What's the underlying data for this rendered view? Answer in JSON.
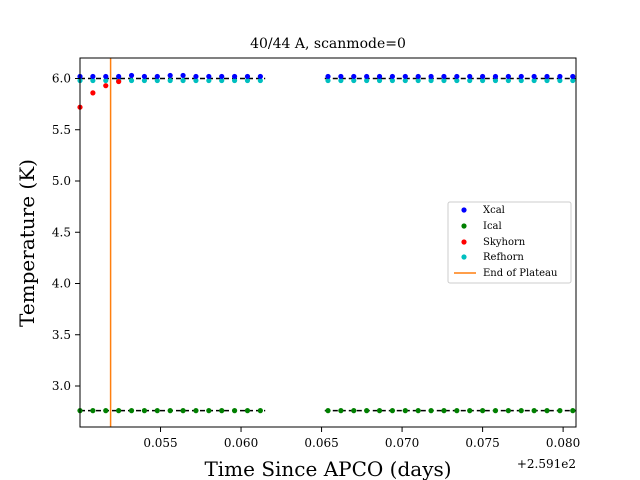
{
  "chart_data": {
    "type": "scatter",
    "title": "40/44 A, scanmode=0",
    "xlabel": "Time Since APCO (days)",
    "ylabel": "Temperature (K)",
    "x_offset_label": "+2.591e2",
    "xlim": [
      0.05,
      0.0808
    ],
    "ylim": [
      2.6,
      6.2
    ],
    "xticks": [
      0.055,
      0.06,
      0.065,
      0.07,
      0.075,
      0.08
    ],
    "xtick_labels": [
      "0.055",
      "0.060",
      "0.065",
      "0.070",
      "0.075",
      "0.080"
    ],
    "yticks": [
      3.0,
      3.5,
      4.0,
      4.5,
      5.0,
      5.5,
      6.0
    ],
    "ytick_labels": [
      "3.0",
      "3.5",
      "4.0",
      "4.5",
      "5.0",
      "5.5",
      "6.0"
    ],
    "grid": false,
    "legend_position": "center-right",
    "series": [
      {
        "name": "Xcal",
        "color": "#0000ff",
        "x": [
          0.05,
          0.0508,
          0.0516,
          0.0524,
          0.0532,
          0.054,
          0.0548,
          0.0556,
          0.0564,
          0.0572,
          0.058,
          0.0588,
          0.0596,
          0.0604,
          0.0612,
          0.0654,
          0.0662,
          0.067,
          0.0678,
          0.0686,
          0.0694,
          0.0702,
          0.071,
          0.0718,
          0.0726,
          0.0734,
          0.0742,
          0.075,
          0.0758,
          0.0766,
          0.0774,
          0.0782,
          0.079,
          0.0798,
          0.0806
        ],
        "y": [
          6.02,
          6.02,
          6.02,
          6.02,
          6.03,
          6.02,
          6.02,
          6.03,
          6.03,
          6.02,
          6.02,
          6.02,
          6.02,
          6.02,
          6.02,
          6.02,
          6.02,
          6.02,
          6.02,
          6.02,
          6.02,
          6.02,
          6.02,
          6.02,
          6.02,
          6.02,
          6.02,
          6.02,
          6.02,
          6.02,
          6.02,
          6.02,
          6.02,
          6.02,
          6.02
        ]
      },
      {
        "name": "Ical",
        "color": "#008000",
        "x": [
          0.05,
          0.0508,
          0.0516,
          0.0524,
          0.0532,
          0.054,
          0.0548,
          0.0556,
          0.0564,
          0.0572,
          0.058,
          0.0588,
          0.0596,
          0.0604,
          0.0612,
          0.0654,
          0.0662,
          0.067,
          0.0678,
          0.0686,
          0.0694,
          0.0702,
          0.071,
          0.0718,
          0.0726,
          0.0734,
          0.0742,
          0.075,
          0.0758,
          0.0766,
          0.0774,
          0.0782,
          0.079,
          0.0798,
          0.0806
        ],
        "y": [
          2.76,
          2.76,
          2.76,
          2.76,
          2.76,
          2.76,
          2.76,
          2.76,
          2.76,
          2.76,
          2.76,
          2.76,
          2.76,
          2.76,
          2.76,
          2.76,
          2.76,
          2.76,
          2.76,
          2.76,
          2.76,
          2.76,
          2.76,
          2.76,
          2.76,
          2.76,
          2.76,
          2.76,
          2.76,
          2.76,
          2.76,
          2.76,
          2.76,
          2.76,
          2.76
        ]
      },
      {
        "name": "Skyhorn",
        "color": "#ff0000",
        "x": [
          0.05,
          0.0508,
          0.0516,
          0.0524
        ],
        "y": [
          5.72,
          5.86,
          5.93,
          5.97
        ]
      },
      {
        "name": "Refhorn",
        "color": "#00bfbf",
        "x": [
          0.05,
          0.0508,
          0.0516,
          0.0524,
          0.0532,
          0.054,
          0.0548,
          0.0556,
          0.0564,
          0.0572,
          0.058,
          0.0588,
          0.0596,
          0.0604,
          0.0612,
          0.0654,
          0.0662,
          0.067,
          0.0678,
          0.0686,
          0.0694,
          0.0702,
          0.071,
          0.0718,
          0.0726,
          0.0734,
          0.0742,
          0.075,
          0.0758,
          0.0766,
          0.0774,
          0.0782,
          0.079,
          0.0798,
          0.0806
        ],
        "y": [
          5.98,
          5.98,
          5.98,
          5.98,
          5.98,
          5.98,
          5.98,
          5.98,
          5.98,
          5.98,
          5.98,
          5.98,
          5.98,
          5.98,
          5.98,
          5.98,
          5.98,
          5.98,
          5.98,
          5.98,
          5.98,
          5.98,
          5.98,
          5.98,
          5.98,
          5.98,
          5.98,
          5.98,
          5.98,
          5.98,
          5.98,
          5.98,
          5.98,
          5.98,
          5.98
        ]
      }
    ],
    "reference_lines": {
      "horizontal_dashed": [
        6.0,
        2.76
      ],
      "dashed_color": "#000000",
      "dashed_segments_x": [
        [
          0.05,
          0.0615
        ],
        [
          0.0652,
          0.0808
        ]
      ],
      "vertical_line": {
        "name": "End of Plateau",
        "x": 0.0519,
        "color": "#ff7f0e"
      }
    }
  }
}
